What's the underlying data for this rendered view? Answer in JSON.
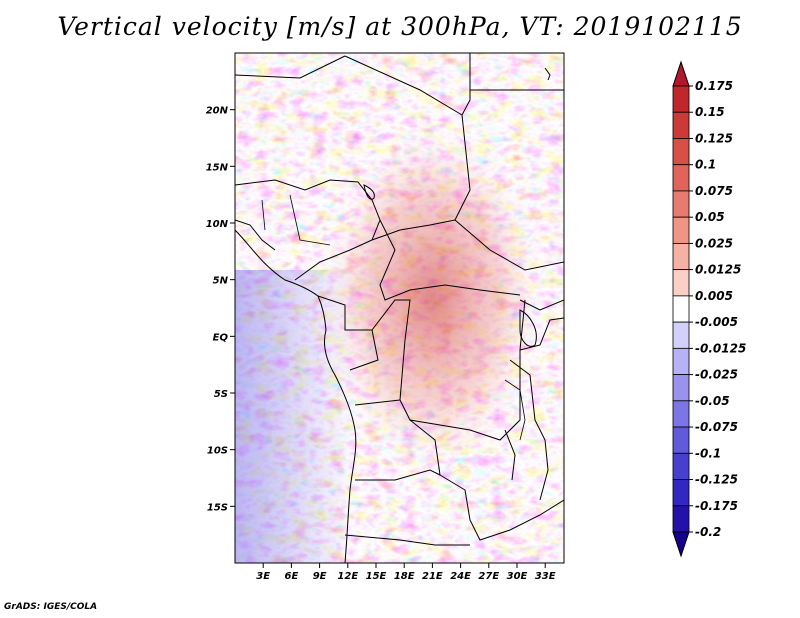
{
  "title": "Vertical velocity [m/s] at 300hPa, VT: 2019102115",
  "footer": "GrADS: IGES/COLA",
  "map": {
    "lat_labels": [
      "20N",
      "15N",
      "10N",
      "5N",
      "EQ",
      "5S",
      "10S",
      "15S"
    ],
    "lat_values": [
      20,
      15,
      10,
      5,
      0,
      -5,
      -10,
      -15
    ],
    "lon_labels": [
      "3E",
      "6E",
      "9E",
      "12E",
      "15E",
      "18E",
      "21E",
      "24E",
      "27E",
      "30E",
      "33E"
    ],
    "lon_values": [
      3,
      6,
      9,
      12,
      15,
      18,
      21,
      24,
      27,
      30,
      33
    ],
    "lat_range": [
      -20,
      25
    ],
    "lon_range": [
      0,
      35
    ]
  },
  "colorbar": {
    "labels": [
      "0.175",
      "0.15",
      "0.125",
      "0.1",
      "0.075",
      "0.05",
      "0.025",
      "0.0125",
      "0.005",
      "-0.005",
      "-0.0125",
      "-0.025",
      "-0.05",
      "-0.075",
      "-0.1",
      "-0.125",
      "-0.175",
      "-0.2"
    ],
    "colors": [
      "#b2182b",
      "#c0272d",
      "#cc3a37",
      "#d84f46",
      "#e06459",
      "#e87b6f",
      "#f09586",
      "#f5b1a4",
      "#fad0c6",
      "#ffffff",
      "#d3d1fb",
      "#b6b2f5",
      "#9993ee",
      "#7c75e6",
      "#615bdc",
      "#4740cf",
      "#3227c0",
      "#2411a9",
      "#14008c"
    ]
  }
}
